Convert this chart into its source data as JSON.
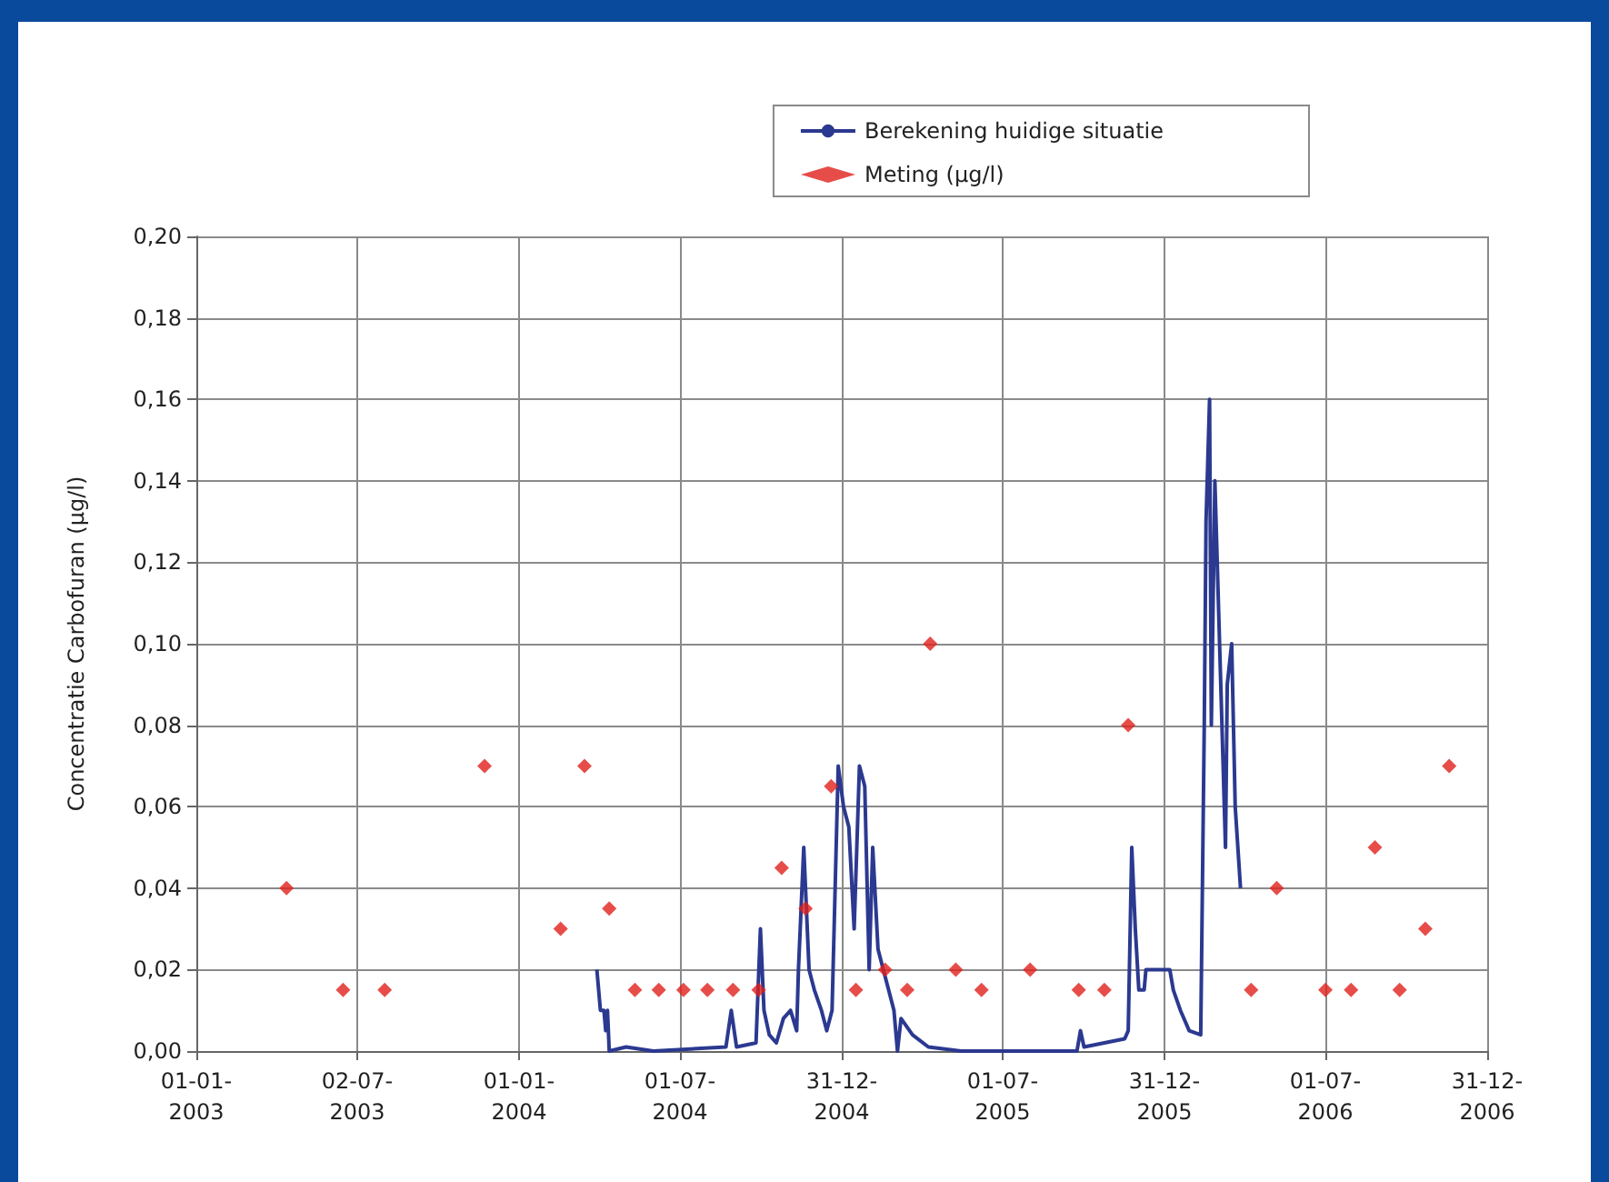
{
  "chart_data": {
    "type": "line",
    "ylabel": "Concentratie Carbofuran (µg/l)",
    "grid": true,
    "legend": "top right",
    "line_style": "solid",
    "xlim": [
      "2003-01-01",
      "2006-12-31"
    ],
    "xticks": [
      {
        "value": "2003-01-01",
        "label": "01-01-\n2003"
      },
      {
        "value": "2003-07-02",
        "label": "02-07-\n2003"
      },
      {
        "value": "2004-01-01",
        "label": "01-01-\n2004"
      },
      {
        "value": "2004-07-01",
        "label": "01-07-\n2004"
      },
      {
        "value": "2004-12-31",
        "label": "31-12-\n2004"
      },
      {
        "value": "2005-07-01",
        "label": "01-07-\n2005"
      },
      {
        "value": "2005-12-31",
        "label": "31-12-\n2005"
      },
      {
        "value": "2006-07-01",
        "label": "01-07-\n2006"
      },
      {
        "value": "2006-12-31",
        "label": "31-12-\n2006"
      }
    ],
    "ylim": [
      0,
      0.2
    ],
    "yticks": [
      {
        "value": 0,
        "label": "0,00"
      },
      {
        "value": 0.02,
        "label": "0,02"
      },
      {
        "value": 0.04,
        "label": "0,04"
      },
      {
        "value": 0.06,
        "label": "0,06"
      },
      {
        "value": 0.08,
        "label": "0,08"
      },
      {
        "value": 0.1,
        "label": "0,10"
      },
      {
        "value": 0.12,
        "label": "0,12"
      },
      {
        "value": 0.14,
        "label": "0,14"
      },
      {
        "value": 0.16,
        "label": "0,16"
      },
      {
        "value": 0.18,
        "label": "0,18"
      },
      {
        "value": 0.2,
        "label": "0,20"
      }
    ],
    "series": [
      {
        "name": "Berekening huidige situatie",
        "color": "#2b3990",
        "x": [
          "2004-03-29",
          "2004-04-02",
          "2004-04-06",
          "2004-04-08",
          "2004-04-10",
          "2004-04-12",
          "2004-05-01",
          "2004-06-01",
          "2004-08-22",
          "2004-08-28",
          "2004-09-03",
          "2004-09-25",
          "2004-09-30",
          "2004-10-04",
          "2004-10-10",
          "2004-10-18",
          "2004-10-26",
          "2004-11-03",
          "2004-11-10",
          "2004-11-12",
          "2004-11-18",
          "2004-11-24",
          "2004-11-30",
          "2004-12-08",
          "2004-12-14",
          "2004-12-20",
          "2004-12-27",
          "2005-01-02",
          "2005-01-08",
          "2005-01-14",
          "2005-01-20",
          "2005-01-26",
          "2005-01-31",
          "2005-02-04",
          "2005-02-10",
          "2005-02-16",
          "2005-02-22",
          "2005-02-28",
          "2005-03-04",
          "2005-03-08",
          "2005-03-21",
          "2005-04-08",
          "2005-05-15",
          "2005-09-23",
          "2005-09-27",
          "2005-10-01",
          "2005-11-16",
          "2005-11-20",
          "2005-11-24",
          "2005-11-28",
          "2005-12-02",
          "2005-12-08",
          "2005-12-10",
          "2006-01-06",
          "2006-01-10",
          "2006-01-18",
          "2006-01-28",
          "2006-02-10",
          "2006-02-14",
          "2006-02-16",
          "2006-02-20",
          "2006-02-22",
          "2006-02-26",
          "2006-03-10",
          "2006-03-12",
          "2006-03-17",
          "2006-03-21",
          "2006-03-27"
        ],
        "values": [
          0.02,
          0.01,
          0.01,
          0.005,
          0.01,
          0,
          0.001,
          0,
          0.001,
          0.01,
          0.001,
          0.002,
          0.03,
          0.01,
          0.004,
          0.002,
          0.008,
          0.01,
          0.005,
          0.02,
          0.05,
          0.02,
          0.015,
          0.01,
          0.005,
          0.01,
          0.07,
          0.06,
          0.055,
          0.03,
          0.07,
          0.065,
          0.02,
          0.05,
          0.025,
          0.02,
          0.015,
          0.01,
          0,
          0.008,
          0.004,
          0.001,
          0,
          0,
          0.005,
          0.001,
          0.003,
          0.005,
          0.05,
          0.03,
          0.015,
          0.015,
          0.02,
          0.02,
          0.015,
          0.01,
          0.005,
          0.004,
          0.08,
          0.13,
          0.16,
          0.08,
          0.14,
          0.05,
          0.09,
          0.1,
          0.06,
          0.04
        ]
      },
      {
        "name": "Meting (µg/l)",
        "type": "scatter",
        "color": "#e0201b",
        "marker": "diamond",
        "x": [
          "2003-04-13",
          "2003-06-16",
          "2003-08-02",
          "2003-11-23",
          "2004-02-17",
          "2004-03-15",
          "2004-04-12",
          "2004-05-11",
          "2004-06-07",
          "2004-07-05",
          "2004-08-01",
          "2004-08-30",
          "2004-09-28",
          "2004-10-24",
          "2004-11-20",
          "2004-12-19",
          "2005-01-16",
          "2005-02-18",
          "2005-03-15",
          "2005-04-10",
          "2005-05-09",
          "2005-06-07",
          "2005-08-01",
          "2005-09-25",
          "2005-10-24",
          "2005-11-20",
          "2006-04-08",
          "2006-05-07",
          "2006-07-01",
          "2006-07-30",
          "2006-08-26",
          "2006-09-23",
          "2006-10-22",
          "2006-11-18"
        ],
        "values": [
          0.04,
          0.015,
          0.015,
          0.07,
          0.03,
          0.07,
          0.035,
          0.015,
          0.015,
          0.015,
          0.015,
          0.015,
          0.015,
          0.045,
          0.035,
          0.065,
          0.015,
          0.02,
          0.015,
          0.1,
          0.02,
          0.015,
          0.02,
          0.015,
          0.015,
          0.08,
          0.015,
          0.04,
          0.015,
          0.015,
          0.05,
          0.015,
          0.03,
          0.07
        ]
      }
    ]
  }
}
